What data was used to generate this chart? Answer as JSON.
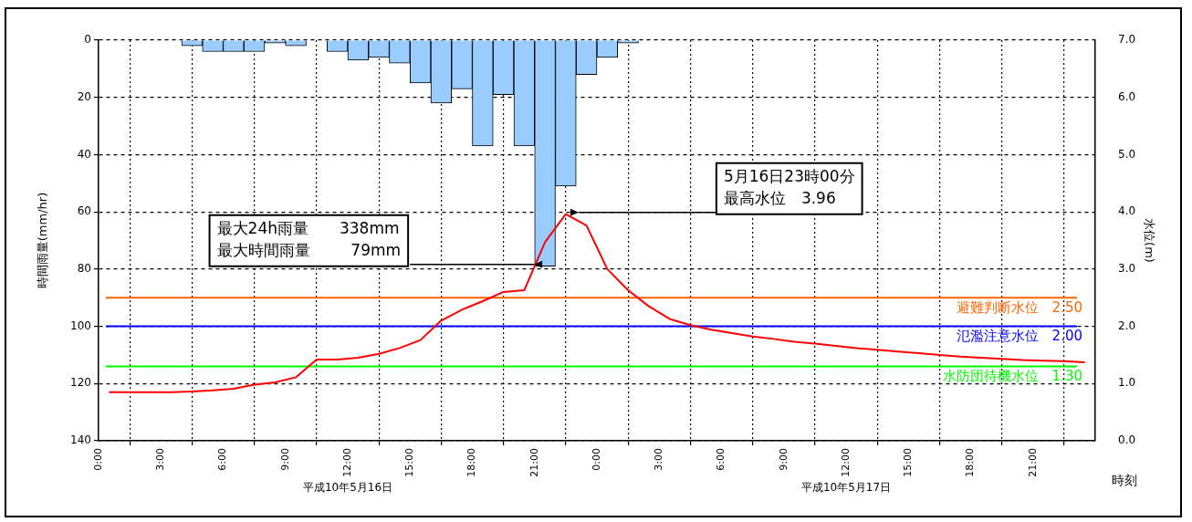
{
  "chart_data": {
    "type": "bar",
    "ylabel": "時間雨量(mm/hr)",
    "y2label": "水位(m)",
    "xlabel": "時刻",
    "xlim": [
      "--05-16T00:00",
      "--05-18T00:00"
    ],
    "xticks": [
      {
        "value": "--05-16T00:00",
        "label": "0:00"
      },
      {
        "value": "--05-16T03:00",
        "label": "3:00"
      },
      {
        "value": "--05-16T06:00",
        "label": "6:00"
      },
      {
        "value": "--05-16T09:00",
        "label": "9:00"
      },
      {
        "value": "--05-16T12:00",
        "label": "12:00"
      },
      {
        "value": "--05-16T15:00",
        "label": "15:00"
      },
      {
        "value": "--05-16T18:00",
        "label": "18:00"
      },
      {
        "value": "--05-16T21:00",
        "label": "21:00"
      },
      {
        "value": "--05-17T00:00",
        "label": "0:00"
      },
      {
        "value": "--05-17T03:00",
        "label": "3:00"
      },
      {
        "value": "--05-17T06:00",
        "label": "6:00"
      },
      {
        "value": "--05-17T09:00",
        "label": "9:00"
      },
      {
        "value": "--05-17T12:00",
        "label": "12:00"
      },
      {
        "value": "--05-17T15:00",
        "label": "15:00"
      },
      {
        "value": "--05-17T18:00",
        "label": "18:00"
      },
      {
        "value": "--05-17T21:00",
        "label": "21:00"
      }
    ],
    "ylim": [
      140,
      0
    ],
    "yticks": [
      0,
      20,
      40,
      60,
      80,
      100,
      120,
      140
    ],
    "y2lim": [
      0,
      7
    ],
    "y2ticks": [
      {
        "value": 0,
        "label": "0.0"
      },
      {
        "value": 1,
        "label": "1.0"
      },
      {
        "value": 2,
        "label": "2.0"
      },
      {
        "value": 3,
        "label": "3.0"
      },
      {
        "value": 4,
        "label": "4.0"
      },
      {
        "value": 5,
        "label": "5.0"
      },
      {
        "value": 6,
        "label": "6.0"
      },
      {
        "value": 7,
        "label": "7.0"
      }
    ],
    "series": [
      {
        "color": "#99ccff",
        "x": [
          "--05-16T04:30",
          "--05-16T05:30",
          "--05-16T06:30",
          "--05-16T07:30",
          "--05-16T08:30",
          "--05-16T09:30",
          "--05-16T11:30",
          "--05-16T12:30",
          "--05-16T13:30",
          "--05-16T14:30",
          "--05-16T15:30",
          "--05-16T16:30",
          "--05-16T17:30",
          "--05-16T18:30",
          "--05-16T19:30",
          "--05-16T20:30",
          "--05-16T21:30",
          "--05-16T22:30",
          "--05-16T23:30",
          "--05-17T00:30",
          "--05-17T01:30"
        ],
        "values": [
          2,
          4,
          4,
          4,
          1,
          2,
          4,
          7,
          6,
          8,
          15,
          22,
          17,
          37,
          19,
          37,
          79,
          51,
          12,
          6,
          1
        ]
      },
      {
        "type": "line",
        "axis": "y2",
        "color": "#ff0000",
        "x": [
          "--05-16T00:30",
          "--05-16T01:30",
          "--05-16T02:30",
          "--05-16T03:30",
          "--05-16T04:30",
          "--05-16T05:30",
          "--05-16T06:30",
          "--05-16T07:30",
          "--05-16T08:30",
          "--05-16T09:30",
          "--05-16T10:30",
          "--05-16T11:30",
          "--05-16T12:30",
          "--05-16T13:30",
          "--05-16T14:30",
          "--05-16T15:30",
          "--05-16T16:30",
          "--05-16T17:30",
          "--05-16T18:30",
          "--05-16T19:30",
          "--05-16T20:30",
          "--05-16T21:30",
          "--05-16T22:30",
          "--05-16T23:30",
          "--05-17T00:30",
          "--05-17T01:30",
          "--05-17T02:30",
          "--05-17T03:30",
          "--05-17T04:30",
          "--05-17T05:30",
          "--05-17T06:30",
          "--05-17T07:30",
          "--05-17T08:30",
          "--05-17T09:30",
          "--05-17T10:30",
          "--05-17T11:30",
          "--05-17T12:30",
          "--05-17T13:30",
          "--05-17T14:30",
          "--05-17T15:30",
          "--05-17T16:30",
          "--05-17T17:30",
          "--05-17T18:30",
          "--05-17T19:30",
          "--05-17T20:30",
          "--05-17T21:30",
          "--05-17T22:30",
          "--05-17T23:30"
        ],
        "values": [
          0.85,
          0.85,
          0.85,
          0.85,
          0.86,
          0.88,
          0.91,
          0.98,
          1.02,
          1.11,
          1.42,
          1.42,
          1.45,
          1.52,
          1.62,
          1.76,
          2.1,
          2.29,
          2.44,
          2.6,
          2.63,
          3.47,
          3.96,
          3.76,
          3.0,
          2.63,
          2.35,
          2.13,
          2.02,
          1.94,
          1.88,
          1.82,
          1.78,
          1.73,
          1.7,
          1.66,
          1.62,
          1.59,
          1.56,
          1.53,
          1.5,
          1.47,
          1.45,
          1.43,
          1.41,
          1.4,
          1.39,
          1.37
        ]
      }
    ],
    "ref_lines": [
      {
        "axis": "y2",
        "value": 2.5,
        "label": "避難判断水位　2.50",
        "color": "#ff6600"
      },
      {
        "axis": "y2",
        "value": 2.0,
        "label": "氾濫注意水位　2.00",
        "color": "#0000ff"
      },
      {
        "axis": "y2",
        "value": 1.3,
        "label": "水防団待機水位　1.30",
        "color": "#00ff00"
      }
    ],
    "annotations": [
      "最大24h雨量　　338mm\n最大時間雨量　　  79mm",
      "5月16日23時00分最高水位　3.96",
      "平成10年5月16日",
      "平成10年5月17日"
    ],
    "grid": true,
    "legend": false,
    "marker": "none",
    "line_style": "solid"
  }
}
